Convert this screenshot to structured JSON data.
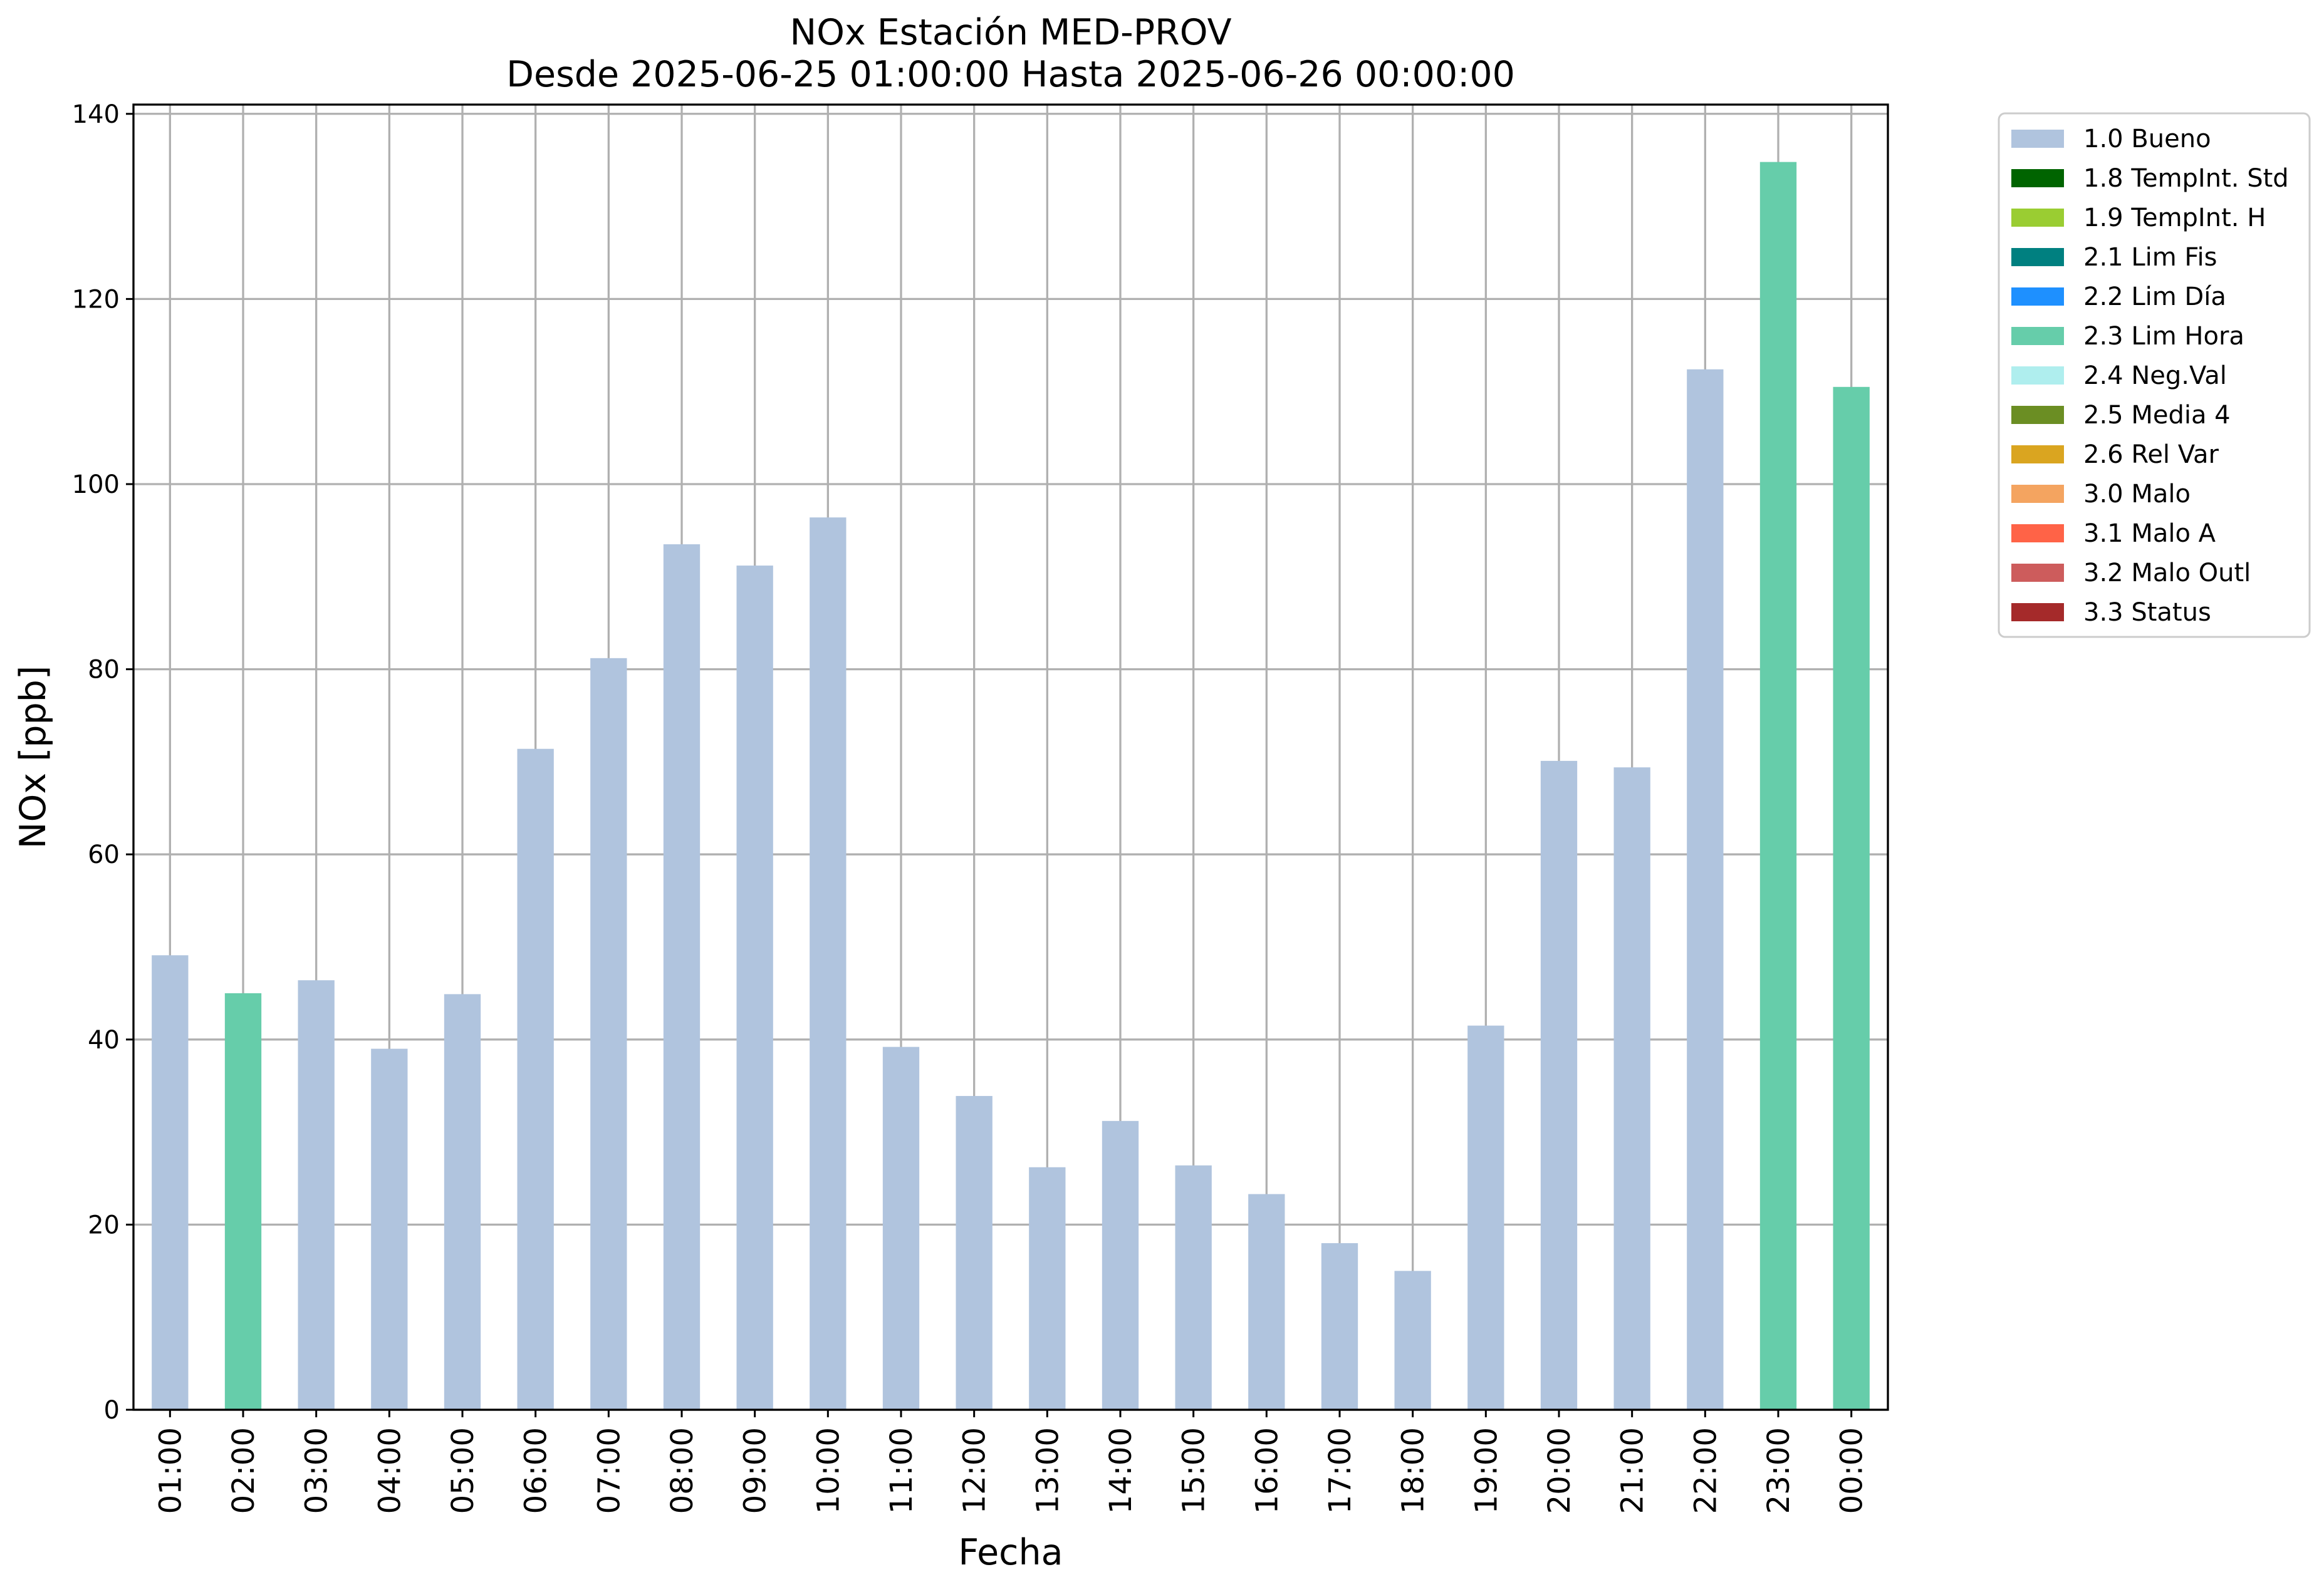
{
  "chart_data": {
    "type": "bar",
    "title": "NOx Estación MED-PROV",
    "subtitle": "Desde 2025-06-25 01:00:00 Hasta 2025-06-26 00:00:00",
    "xlabel": "Fecha",
    "ylabel": "NOx [ppb]",
    "ylim": [
      0,
      141
    ],
    "yticks": [
      0,
      20,
      40,
      60,
      80,
      100,
      120,
      140
    ],
    "grid": true,
    "legend_position": "outside-top-right",
    "categories": [
      "01:00",
      "02:00",
      "03:00",
      "04:00",
      "05:00",
      "06:00",
      "07:00",
      "08:00",
      "09:00",
      "10:00",
      "11:00",
      "12:00",
      "13:00",
      "14:00",
      "15:00",
      "16:00",
      "17:00",
      "18:00",
      "19:00",
      "20:00",
      "21:00",
      "22:00",
      "23:00",
      "00:00"
    ],
    "values": [
      49.1,
      45.0,
      46.4,
      39.0,
      44.9,
      71.4,
      81.2,
      93.5,
      91.2,
      96.4,
      39.2,
      33.9,
      26.2,
      31.2,
      26.4,
      23.3,
      18.0,
      15.0,
      41.5,
      70.1,
      69.4,
      112.4,
      134.8,
      110.5
    ],
    "flags": [
      "1.0 Bueno",
      "2.3 Lim Hora",
      "1.0 Bueno",
      "1.0 Bueno",
      "1.0 Bueno",
      "1.0 Bueno",
      "1.0 Bueno",
      "1.0 Bueno",
      "1.0 Bueno",
      "1.0 Bueno",
      "1.0 Bueno",
      "1.0 Bueno",
      "1.0 Bueno",
      "1.0 Bueno",
      "1.0 Bueno",
      "1.0 Bueno",
      "1.0 Bueno",
      "1.0 Bueno",
      "1.0 Bueno",
      "1.0 Bueno",
      "1.0 Bueno",
      "1.0 Bueno",
      "2.3 Lim Hora",
      "2.3 Lim Hora"
    ],
    "legend": [
      {
        "name": "1.0 Bueno",
        "color": "#b0c4de"
      },
      {
        "name": "1.8 TempInt. Std",
        "color": "#006400"
      },
      {
        "name": "1.9 TempInt. H",
        "color": "#9acd32"
      },
      {
        "name": "2.1 Lim Fis",
        "color": "#008080"
      },
      {
        "name": "2.2 Lim Día",
        "color": "#1e90ff"
      },
      {
        "name": "2.3 Lim Hora",
        "color": "#66cdaa"
      },
      {
        "name": "2.4 Neg.Val",
        "color": "#afeeee"
      },
      {
        "name": "2.5 Media 4",
        "color": "#6b8e23"
      },
      {
        "name": "2.6 Rel Var",
        "color": "#daa520"
      },
      {
        "name": "3.0 Malo",
        "color": "#f4a460"
      },
      {
        "name": "3.1 Malo A",
        "color": "#ff6347"
      },
      {
        "name": "3.2 Malo Outl",
        "color": "#cd5c5c"
      },
      {
        "name": "3.3 Status",
        "color": "#a52a2a"
      }
    ]
  }
}
